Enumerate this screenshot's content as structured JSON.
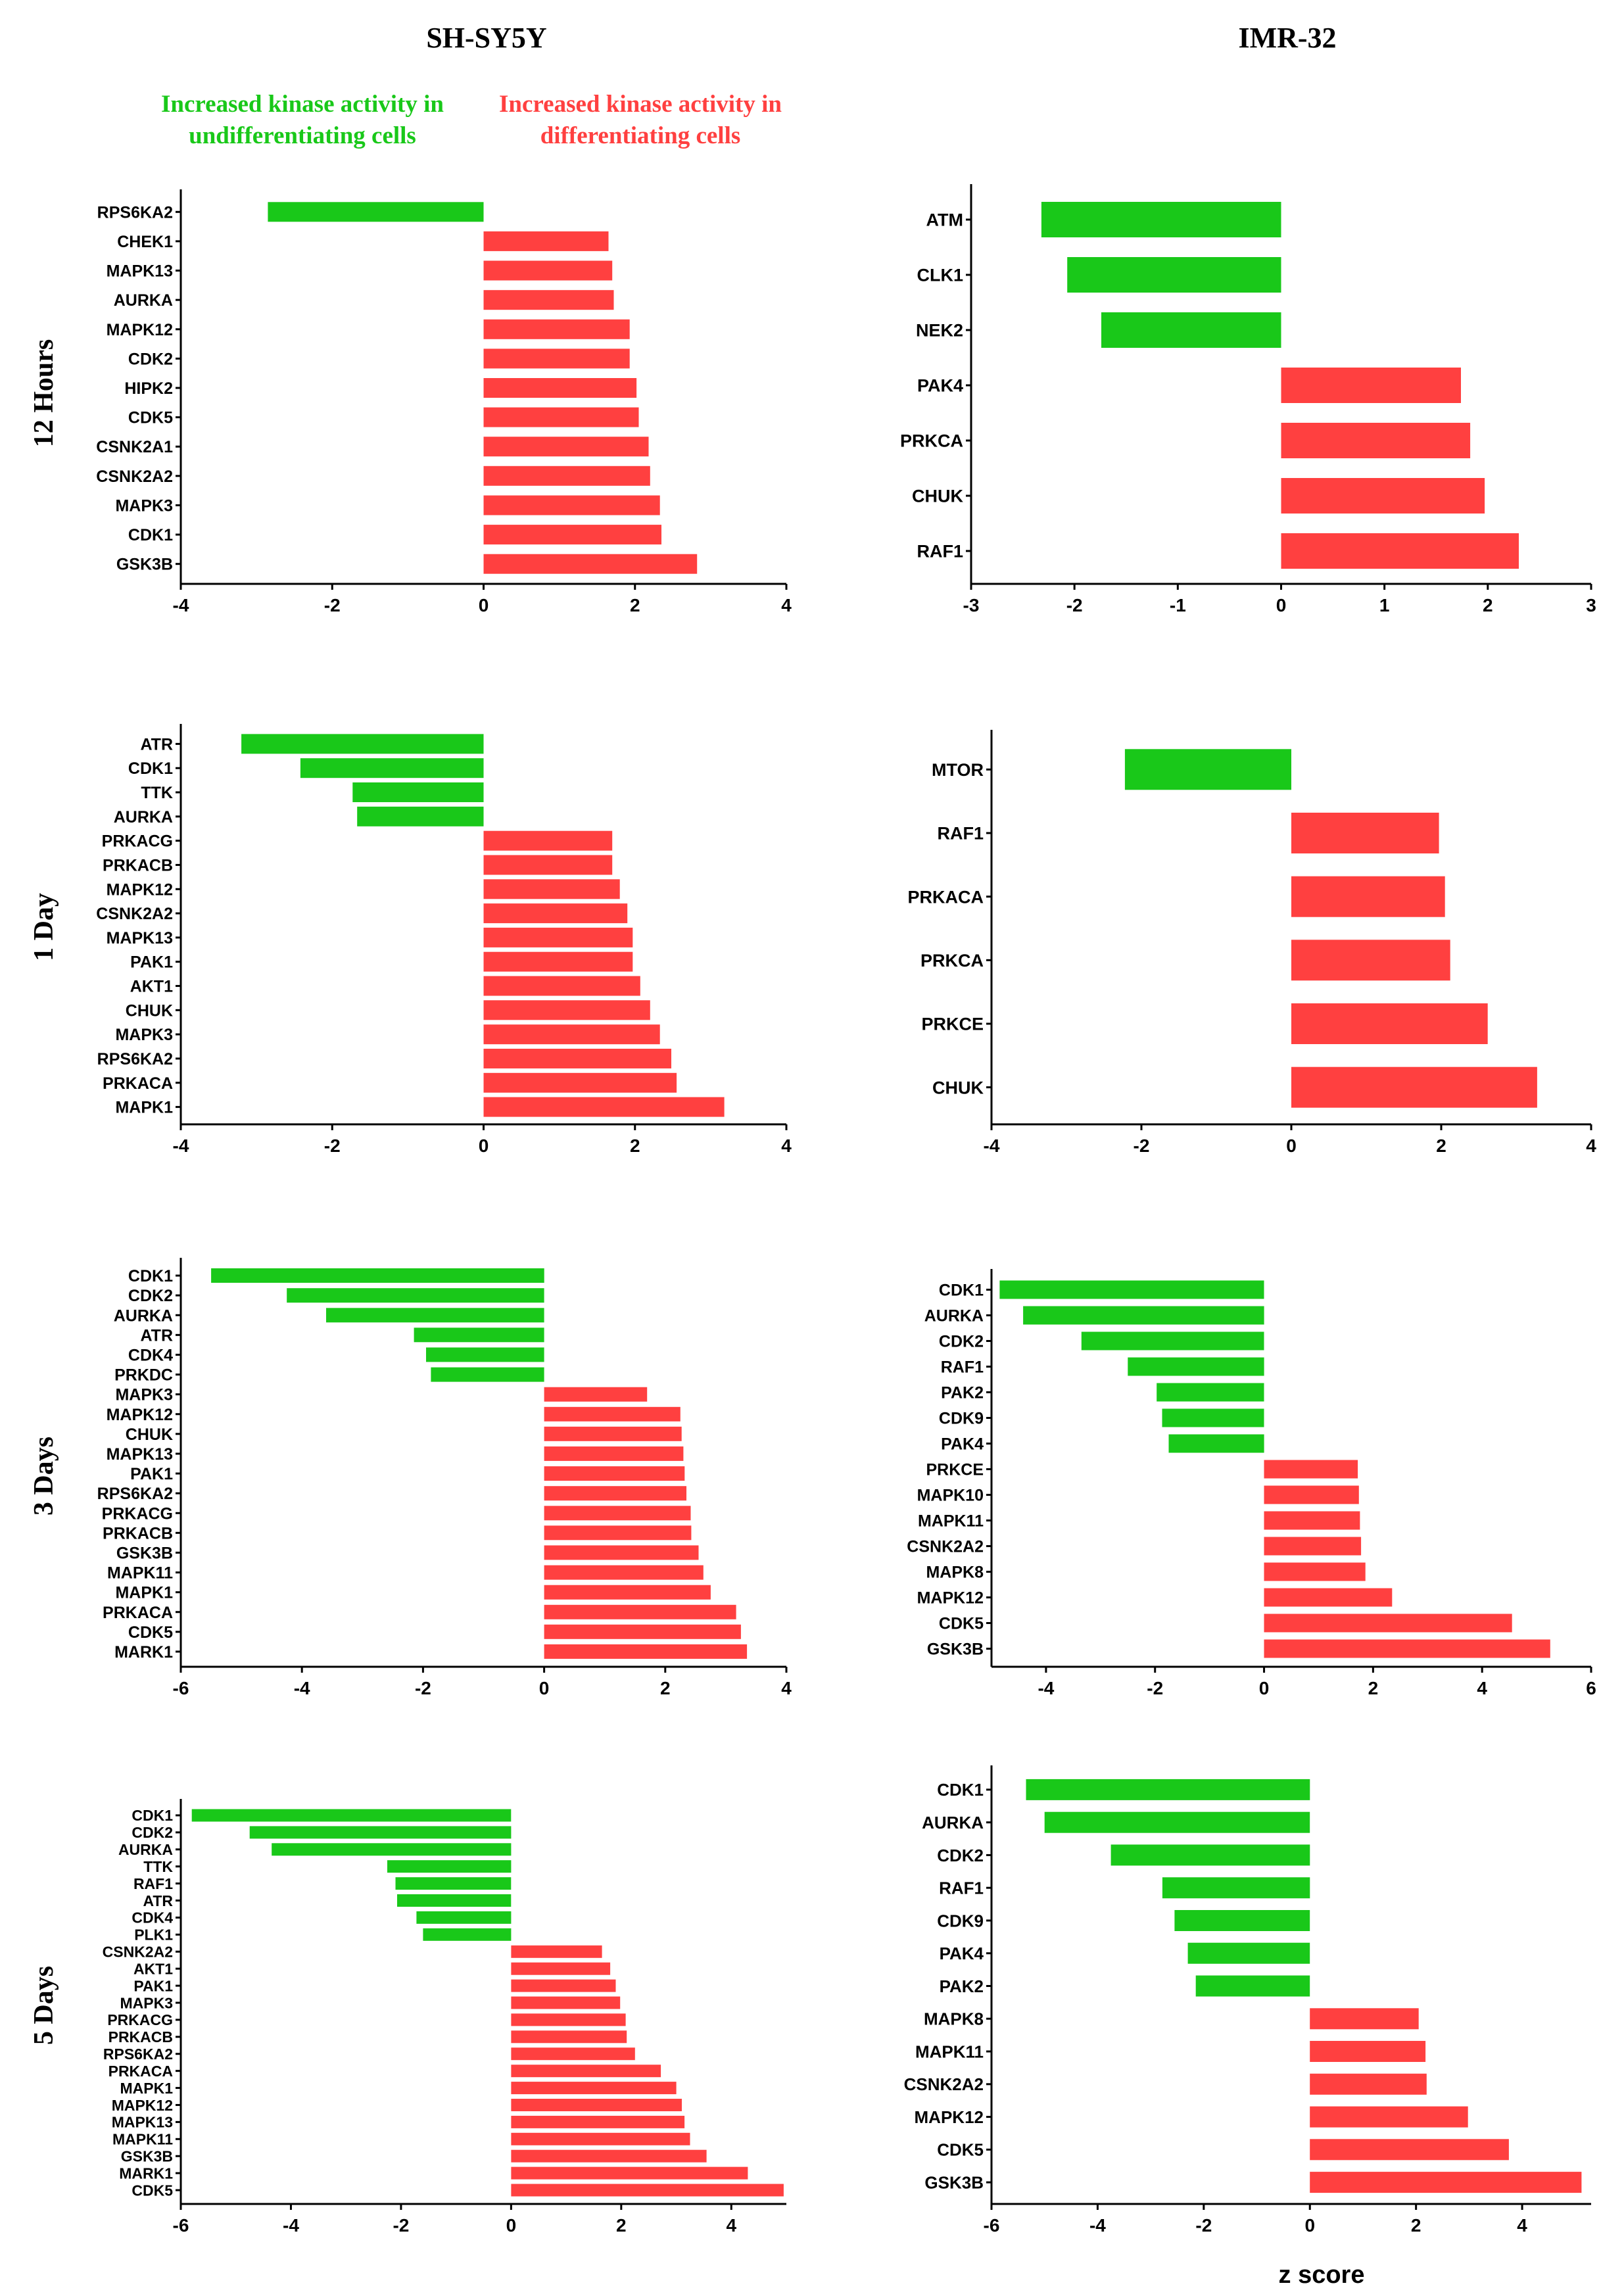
{
  "headers": {
    "col_left": "SH-SY5Y",
    "col_right": "IMR-32",
    "legend_green_line1": "Increased kinase activity in",
    "legend_green_line2": "undifferentiating cells",
    "legend_red_line1": "Increased kinase activity in",
    "legend_red_line2": "differentiating cells",
    "row_labels": [
      "12 Hours",
      "1 Day",
      "3 Days",
      "5 Days"
    ],
    "xaxis_label": "z score"
  },
  "colors": {
    "positive": "#ff4040",
    "negative": "#19c819",
    "axis": "#000000"
  },
  "chart_data": [
    {
      "type": "bar",
      "title": "SH-SY5Y 12 Hours",
      "categories": [
        "RPS6KA2",
        "CHEK1",
        "MAPK13",
        "AURKA",
        "MAPK12",
        "CDK2",
        "HIPK2",
        "CDK5",
        "CSNK2A1",
        "CSNK2A2",
        "MAPK3",
        "CDK1",
        "GSK3B"
      ],
      "values": [
        -2.85,
        1.65,
        1.7,
        1.72,
        1.93,
        1.93,
        2.02,
        2.05,
        2.18,
        2.2,
        2.33,
        2.35,
        2.82
      ],
      "xlim": [
        -4,
        4
      ],
      "xticks": [
        "-4",
        "-2",
        "0",
        "2",
        "4"
      ],
      "xlabel": ""
    },
    {
      "type": "bar",
      "title": "IMR-32 12 Hours",
      "categories": [
        "ATM",
        "CLK1",
        "NEK2",
        "PAK4",
        "PRKCA",
        "CHUK",
        "RAF1"
      ],
      "values": [
        -2.32,
        -2.07,
        -1.74,
        1.74,
        1.83,
        1.97,
        2.3
      ],
      "xlim": [
        -3,
        3
      ],
      "xticks": [
        "-3",
        "-2",
        "-1",
        "0",
        "1",
        "2",
        "3"
      ],
      "xlabel": ""
    },
    {
      "type": "bar",
      "title": "SH-SY5Y 1 Day",
      "categories": [
        "ATR",
        "CDK1",
        "TTK",
        "AURKA",
        "PRKACG",
        "PRKACB",
        "MAPK12",
        "CSNK2A2",
        "MAPK13",
        "PAK1",
        "AKT1",
        "CHUK",
        "MAPK3",
        "RPS6KA2",
        "PRKACA",
        "MAPK1"
      ],
      "values": [
        -3.2,
        -2.42,
        -1.73,
        -1.67,
        1.7,
        1.7,
        1.8,
        1.9,
        1.97,
        1.97,
        2.07,
        2.2,
        2.33,
        2.48,
        2.55,
        3.18
      ],
      "xlim": [
        -4,
        4
      ],
      "xticks": [
        "-4",
        "-2",
        "0",
        "2",
        "4"
      ],
      "xlabel": ""
    },
    {
      "type": "bar",
      "title": "IMR-32 1 Day",
      "categories": [
        "MTOR",
        "RAF1",
        "PRKACA",
        "PRKCA",
        "PRKCE",
        "CHUK"
      ],
      "values": [
        -2.22,
        1.97,
        2.05,
        2.12,
        2.62,
        3.28
      ],
      "xlim": [
        -4,
        4
      ],
      "xticks": [
        "-4",
        "-2",
        "0",
        "2",
        "4"
      ],
      "xlabel": ""
    },
    {
      "type": "bar",
      "title": "SH-SY5Y 3 Days",
      "categories": [
        "CDK1",
        "CDK2",
        "AURKA",
        "ATR",
        "CDK4",
        "PRKDC",
        "MAPK3",
        "MAPK12",
        "CHUK",
        "MAPK13",
        "PAK1",
        "RPS6KA2",
        "PRKACG",
        "PRKACB",
        "GSK3B",
        "MAPK11",
        "MAPK1",
        "PRKACA",
        "CDK5",
        "MARK1"
      ],
      "values": [
        -5.5,
        -4.25,
        -3.6,
        -2.15,
        -1.95,
        -1.87,
        1.7,
        2.25,
        2.27,
        2.3,
        2.32,
        2.35,
        2.42,
        2.43,
        2.55,
        2.63,
        2.75,
        3.17,
        3.25,
        3.35
      ],
      "xlim": [
        -6,
        4
      ],
      "xticks": [
        "-6",
        "-4",
        "-2",
        "0",
        "2",
        "4"
      ],
      "xlabel": ""
    },
    {
      "type": "bar",
      "title": "IMR-32 3 Days",
      "categories": [
        "CDK1",
        "AURKA",
        "CDK2",
        "RAF1",
        "PAK2",
        "CDK9",
        "PAK4",
        "PRKCE",
        "MAPK10",
        "MAPK11",
        "CSNK2A2",
        "MAPK8",
        "MAPK12",
        "CDK5",
        "GSK3B"
      ],
      "values": [
        -4.85,
        -4.42,
        -3.35,
        -2.5,
        -1.97,
        -1.87,
        -1.75,
        1.72,
        1.74,
        1.76,
        1.78,
        1.86,
        2.35,
        4.55,
        5.25
      ],
      "xlim": [
        -5,
        6
      ],
      "xticks": [
        "-4",
        "-2",
        "0",
        "2",
        "4",
        "6"
      ],
      "xlabel": ""
    },
    {
      "type": "bar",
      "title": "SH-SY5Y 5 Days",
      "categories": [
        "CDK1",
        "CDK2",
        "AURKA",
        "TTK",
        "RAF1",
        "ATR",
        "CDK4",
        "PLK1",
        "CSNK2A2",
        "AKT1",
        "PAK1",
        "MAPK3",
        "PRKACG",
        "PRKACB",
        "RPS6KA2",
        "PRKACA",
        "MAPK1",
        "MAPK12",
        "MAPK13",
        "MAPK11",
        "GSK3B",
        "MARK1",
        "CDK5"
      ],
      "values": [
        -5.8,
        -4.75,
        -4.35,
        -2.25,
        -2.1,
        -2.07,
        -1.72,
        -1.6,
        1.65,
        1.8,
        1.9,
        1.98,
        2.08,
        2.1,
        2.25,
        2.72,
        3.0,
        3.1,
        3.15,
        3.25,
        3.55,
        4.3,
        4.95
      ],
      "xlim": [
        -6,
        5
      ],
      "xticks": [
        "-6",
        "-4",
        "-2",
        "0",
        "2",
        "4"
      ],
      "xlabel": ""
    },
    {
      "type": "bar",
      "title": "IMR-32 5 Days",
      "categories": [
        "CDK1",
        "AURKA",
        "CDK2",
        "RAF1",
        "CDK9",
        "PAK4",
        "PAK2",
        "MAPK8",
        "MAPK11",
        "CSNK2A2",
        "MAPK12",
        "CDK5",
        "GSK3B"
      ],
      "values": [
        -5.35,
        -5.0,
        -3.75,
        -2.78,
        -2.55,
        -2.3,
        -2.15,
        2.05,
        2.18,
        2.2,
        2.98,
        3.75,
        5.12
      ],
      "xlim": [
        -6,
        5.3
      ],
      "xticks": [
        "-6",
        "-4",
        "-2",
        "0",
        "2",
        "4"
      ],
      "xlabel": "z score"
    }
  ]
}
